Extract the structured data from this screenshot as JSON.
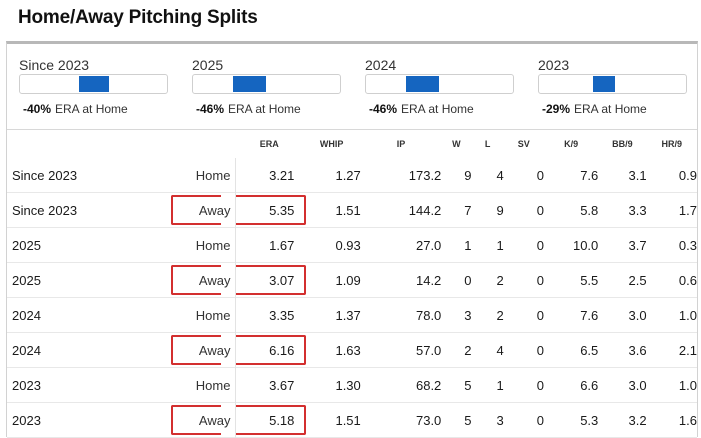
{
  "title": "Home/Away Pitching Splits",
  "splits": [
    {
      "label": "Since 2023",
      "pct": "-40%",
      "note": "ERA at Home",
      "fill_fraction": 0.4
    },
    {
      "label": "2025",
      "pct": "-46%",
      "note": "ERA at Home",
      "fill_fraction": 0.46
    },
    {
      "label": "2024",
      "pct": "-46%",
      "note": "ERA at Home",
      "fill_fraction": 0.46
    },
    {
      "label": "2023",
      "pct": "-29%",
      "note": "ERA at Home",
      "fill_fraction": 0.29
    }
  ],
  "columns": [
    "ERA",
    "WHIP",
    "IP",
    "W",
    "L",
    "SV",
    "K/9",
    "BB/9",
    "HR/9"
  ],
  "rows": [
    {
      "season": "Since 2023",
      "venue": "Home",
      "era": "3.21",
      "whip": "1.27",
      "ip": "173.2",
      "w": "9",
      "l": "4",
      "sv": "0",
      "k9": "7.6",
      "bb9": "3.1",
      "hr9": "0.9"
    },
    {
      "season": "Since 2023",
      "venue": "Away",
      "era": "5.35",
      "whip": "1.51",
      "ip": "144.2",
      "w": "7",
      "l": "9",
      "sv": "0",
      "k9": "5.8",
      "bb9": "3.3",
      "hr9": "1.7"
    },
    {
      "season": "2025",
      "venue": "Home",
      "era": "1.67",
      "whip": "0.93",
      "ip": "27.0",
      "w": "1",
      "l": "1",
      "sv": "0",
      "k9": "10.0",
      "bb9": "3.7",
      "hr9": "0.3"
    },
    {
      "season": "2025",
      "venue": "Away",
      "era": "3.07",
      "whip": "1.09",
      "ip": "14.2",
      "w": "0",
      "l": "2",
      "sv": "0",
      "k9": "5.5",
      "bb9": "2.5",
      "hr9": "0.6"
    },
    {
      "season": "2024",
      "venue": "Home",
      "era": "3.35",
      "whip": "1.37",
      "ip": "78.0",
      "w": "3",
      "l": "2",
      "sv": "0",
      "k9": "7.6",
      "bb9": "3.0",
      "hr9": "1.0"
    },
    {
      "season": "2024",
      "venue": "Away",
      "era": "6.16",
      "whip": "1.63",
      "ip": "57.0",
      "w": "2",
      "l": "4",
      "sv": "0",
      "k9": "6.5",
      "bb9": "3.6",
      "hr9": "2.1"
    },
    {
      "season": "2023",
      "venue": "Home",
      "era": "3.67",
      "whip": "1.30",
      "ip": "68.2",
      "w": "5",
      "l": "1",
      "sv": "0",
      "k9": "6.6",
      "bb9": "3.0",
      "hr9": "1.0"
    },
    {
      "season": "2023",
      "venue": "Away",
      "era": "5.18",
      "whip": "1.51",
      "ip": "73.0",
      "w": "5",
      "l": "3",
      "sv": "0",
      "k9": "5.3",
      "bb9": "3.2",
      "hr9": "1.6"
    }
  ],
  "colors": {
    "bar_fill": "#1565c0",
    "highlight": "#d32f2f"
  }
}
